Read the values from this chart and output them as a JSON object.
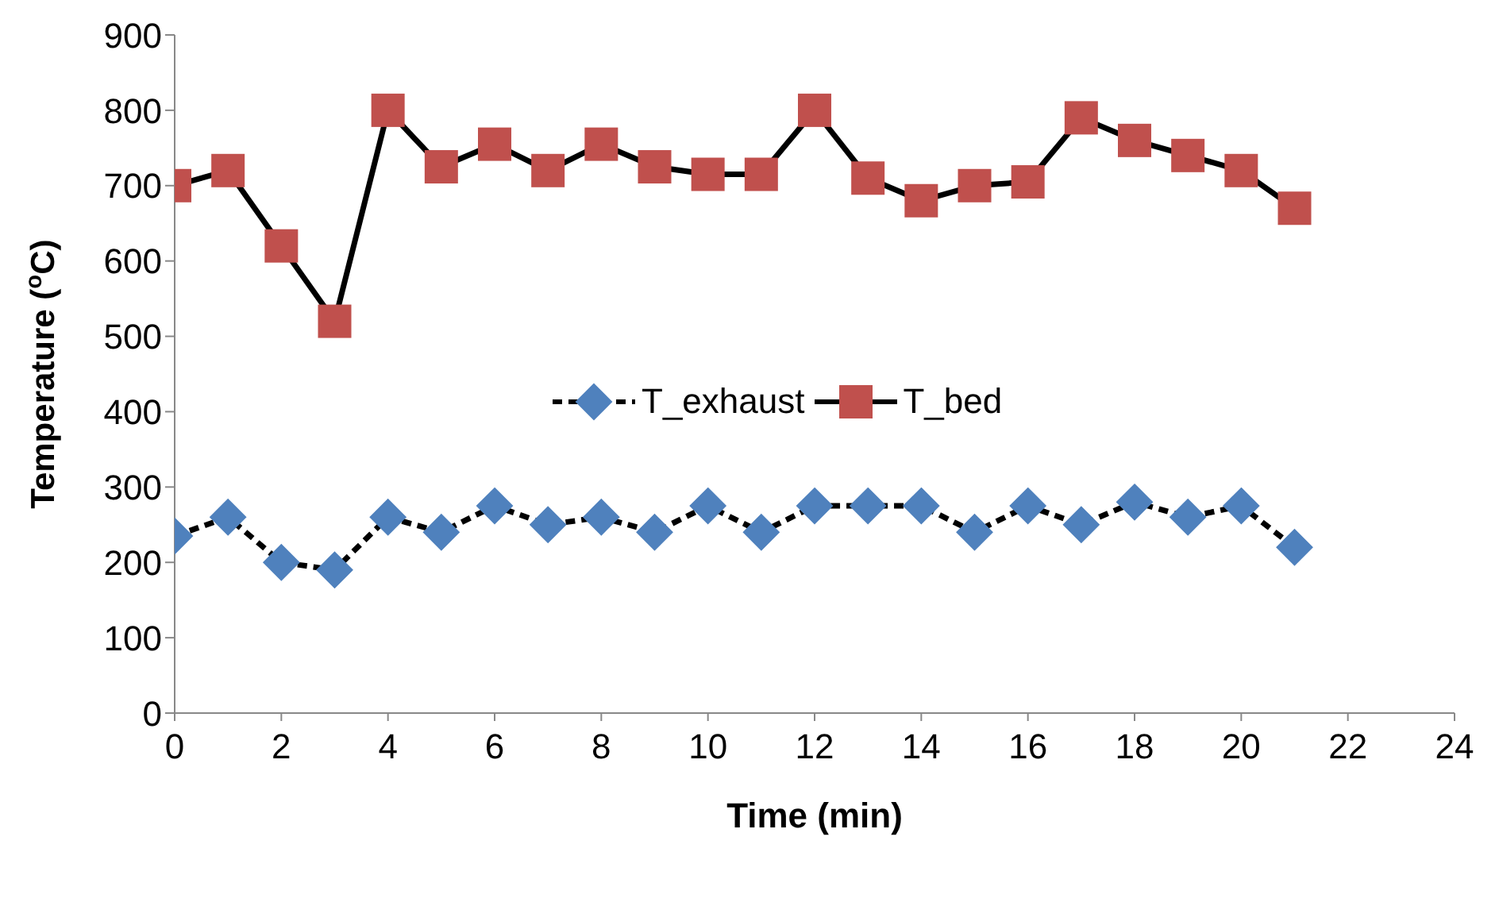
{
  "chart_data": {
    "type": "line",
    "xlabel": "Time (min)",
    "ylabel": "Temperature ($^{o}$C)",
    "x": [
      0,
      1,
      2,
      3,
      4,
      5,
      6,
      7,
      8,
      9,
      10,
      11,
      12,
      13,
      14,
      15,
      16,
      17,
      18,
      19,
      20,
      21
    ],
    "series": [
      {
        "name": "T_exhaust",
        "color": "#4f81bd",
        "marker": "diamond",
        "line_style": "dashed",
        "values": [
          235,
          260,
          200,
          190,
          260,
          240,
          275,
          250,
          260,
          240,
          275,
          240,
          275,
          275,
          275,
          240,
          275,
          250,
          280,
          260,
          275,
          220
        ]
      },
      {
        "name": "T_bed",
        "color": "#c0504d",
        "marker": "square",
        "line_style": "solid",
        "values": [
          700,
          720,
          620,
          520,
          800,
          725,
          755,
          720,
          755,
          725,
          715,
          715,
          800,
          710,
          680,
          700,
          705,
          790,
          760,
          740,
          720,
          670
        ]
      }
    ],
    "xlim": [
      0,
      24
    ],
    "xticks": [
      0,
      2,
      4,
      6,
      8,
      10,
      12,
      14,
      16,
      18,
      20,
      22,
      24
    ],
    "ylim": [
      0,
      900
    ],
    "yticks": [
      0,
      100,
      200,
      300,
      400,
      500,
      600,
      700,
      800,
      900
    ],
    "grid": false,
    "legend": "center"
  }
}
